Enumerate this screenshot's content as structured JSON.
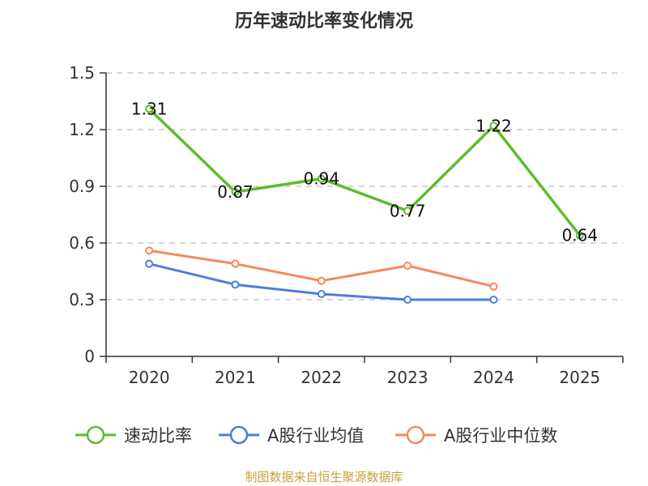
{
  "chart_data": {
    "type": "line",
    "title": "历年速动比率变化情况",
    "categories": [
      "2020",
      "2021",
      "2022",
      "2023",
      "2024",
      "2025"
    ],
    "y_ticks": [
      "0",
      "0.3",
      "0.6",
      "0.9",
      "1.2",
      "1.5"
    ],
    "ylim": [
      0,
      1.5
    ],
    "grid": true,
    "legend_position": "bottom",
    "series": [
      {
        "name": "速动比率",
        "color": "#5cbd2a",
        "values": [
          1.31,
          0.87,
          0.94,
          0.77,
          1.22,
          0.64
        ],
        "labels": [
          "1.31",
          "0.87",
          "0.94",
          "0.77",
          "1.22",
          "0.64"
        ]
      },
      {
        "name": "A股行业均值",
        "color": "#4a7fdc",
        "values": [
          0.49,
          0.38,
          0.33,
          0.3,
          0.3,
          null
        ]
      },
      {
        "name": "A股行业中位数",
        "color": "#f5895a",
        "values": [
          0.56,
          0.49,
          0.4,
          0.48,
          0.37,
          null
        ]
      }
    ]
  },
  "source_text": "制图数据来自恒生聚源数据库"
}
